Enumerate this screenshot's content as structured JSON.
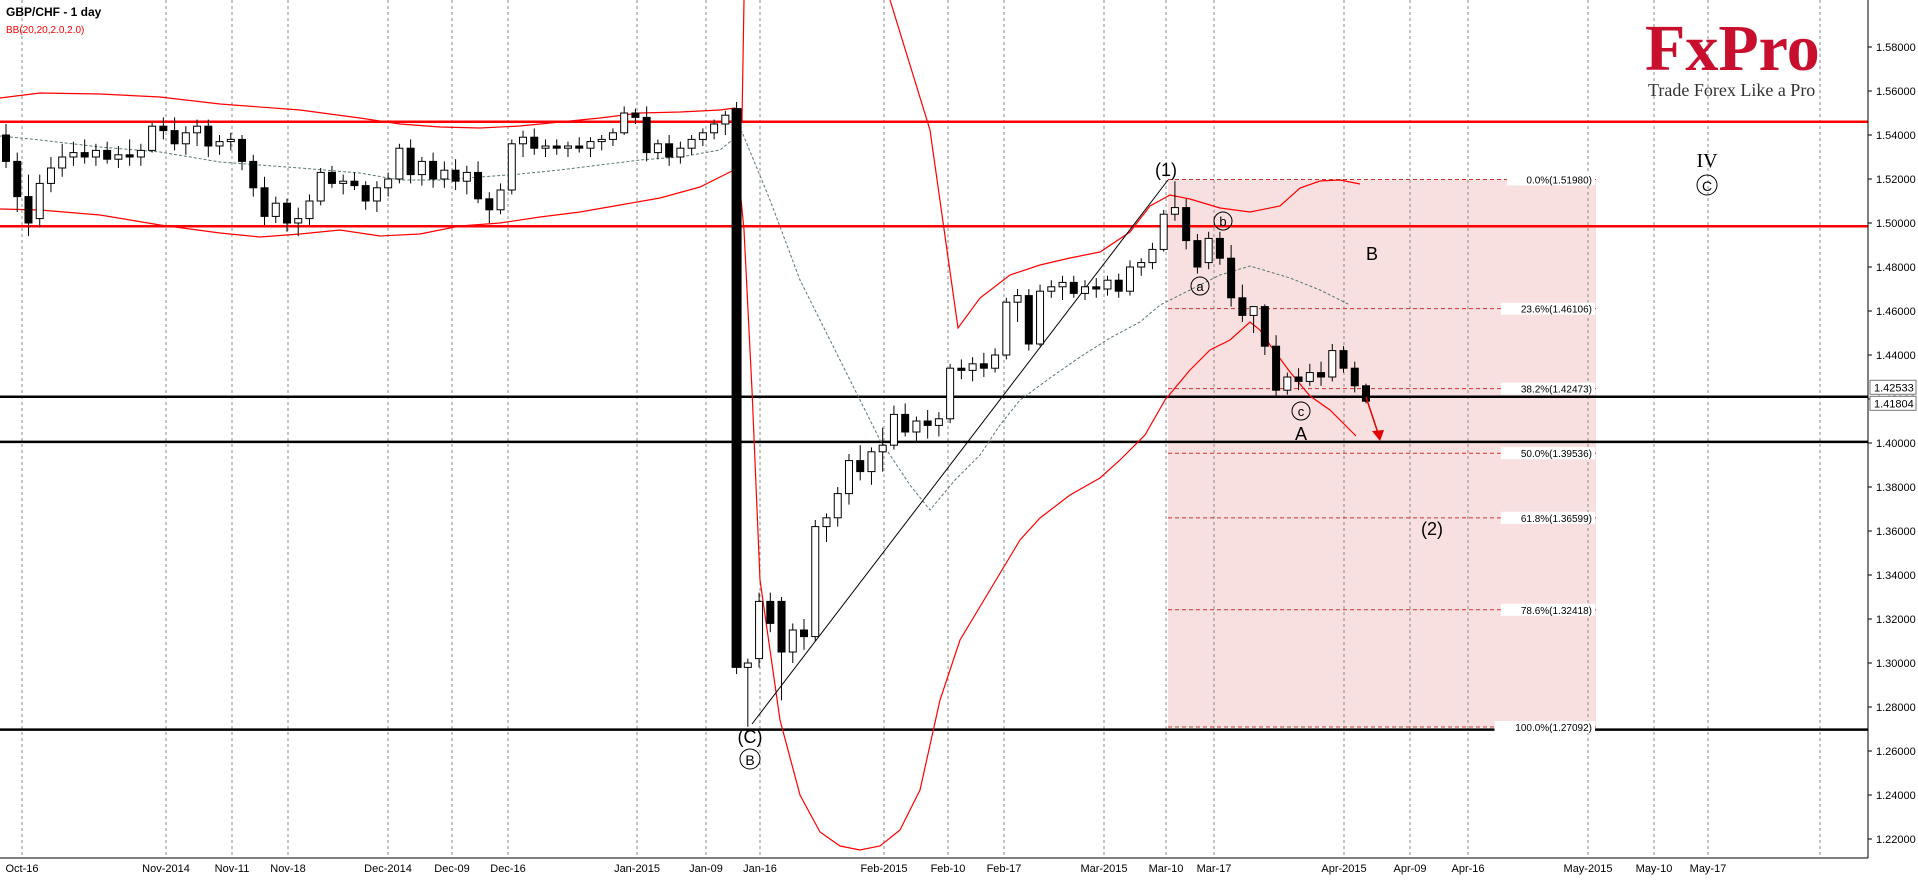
{
  "chart_data": {
    "type": "candlestick",
    "title": "GBP/CHF - 1 day",
    "indicator": "BB(20,20,2.0,2.0)",
    "x_tick_labels": [
      "Oct-16",
      "Nov-2014",
      "Nov-11",
      "Nov-18",
      "Dec-2014",
      "Dec-09",
      "Dec-16",
      "Jan-2015",
      "Jan-09",
      "Jan-16",
      "Feb-2015",
      "Feb-10",
      "Feb-17",
      "Mar-2015",
      "Mar-10",
      "Mar-17",
      "Apr-2015",
      "Apr-09",
      "Apr-16",
      "May-2015",
      "May-10",
      "May-17"
    ],
    "y_ticks": [
      "1.58000",
      "1.56000",
      "1.54000",
      "1.52000",
      "1.50000",
      "1.48000",
      "1.46000",
      "1.44000",
      "1.42000",
      "1.40000",
      "1.38000",
      "1.36000",
      "1.34000",
      "1.32000",
      "1.30000",
      "1.28000",
      "1.26000",
      "1.24000",
      "1.22000"
    ],
    "ylim": [
      1.2108,
      1.6014
    ],
    "price_tags": [
      "1.42533",
      "1.41804"
    ],
    "horizontal_levels": [
      {
        "price": 1.546,
        "color": "#ff0000"
      },
      {
        "price": 1.4985,
        "color": "#ff0000"
      },
      {
        "price": 1.421,
        "color": "#000000"
      },
      {
        "price": 1.4005,
        "color": "#000000"
      },
      {
        "price": 1.2697,
        "color": "#000000"
      }
    ],
    "fibonacci": [
      {
        "label": "0.0%(1.51980)",
        "price": 1.5198
      },
      {
        "label": "23.6%(1.46106)",
        "price": 1.46106
      },
      {
        "label": "38.2%(1.42473)",
        "price": 1.42473
      },
      {
        "label": "50.0%(1.39536)",
        "price": 1.39536
      },
      {
        "label": "61.8%(1.36599)",
        "price": 1.36599
      },
      {
        "label": "78.6%(1.32418)",
        "price": 1.32418
      },
      {
        "label": "100.0%(1.27092)",
        "price": 1.27092
      }
    ],
    "candles": [
      {
        "o": 1.54,
        "h": 1.545,
        "l": 1.525,
        "c": 1.528
      },
      {
        "o": 1.528,
        "h": 1.532,
        "l": 1.505,
        "c": 1.512
      },
      {
        "o": 1.512,
        "h": 1.522,
        "l": 1.494,
        "c": 1.5
      },
      {
        "o": 1.502,
        "h": 1.522,
        "l": 1.498,
        "c": 1.518
      },
      {
        "o": 1.518,
        "h": 1.53,
        "l": 1.514,
        "c": 1.525
      },
      {
        "o": 1.525,
        "h": 1.536,
        "l": 1.521,
        "c": 1.53
      },
      {
        "o": 1.53,
        "h": 1.537,
        "l": 1.526,
        "c": 1.532
      },
      {
        "o": 1.532,
        "h": 1.538,
        "l": 1.527,
        "c": 1.53
      },
      {
        "o": 1.53,
        "h": 1.536,
        "l": 1.526,
        "c": 1.533
      },
      {
        "o": 1.533,
        "h": 1.537,
        "l": 1.527,
        "c": 1.529
      },
      {
        "o": 1.529,
        "h": 1.535,
        "l": 1.525,
        "c": 1.531
      },
      {
        "o": 1.531,
        "h": 1.538,
        "l": 1.526,
        "c": 1.53
      },
      {
        "o": 1.53,
        "h": 1.536,
        "l": 1.526,
        "c": 1.533
      },
      {
        "o": 1.533,
        "h": 1.546,
        "l": 1.532,
        "c": 1.544
      },
      {
        "o": 1.544,
        "h": 1.548,
        "l": 1.538,
        "c": 1.542
      },
      {
        "o": 1.542,
        "h": 1.548,
        "l": 1.533,
        "c": 1.536
      },
      {
        "o": 1.536,
        "h": 1.544,
        "l": 1.531,
        "c": 1.541
      },
      {
        "o": 1.541,
        "h": 1.547,
        "l": 1.535,
        "c": 1.544
      },
      {
        "o": 1.544,
        "h": 1.547,
        "l": 1.53,
        "c": 1.535
      },
      {
        "o": 1.535,
        "h": 1.54,
        "l": 1.531,
        "c": 1.537
      },
      {
        "o": 1.537,
        "h": 1.541,
        "l": 1.533,
        "c": 1.538
      },
      {
        "o": 1.538,
        "h": 1.54,
        "l": 1.524,
        "c": 1.528
      },
      {
        "o": 1.528,
        "h": 1.531,
        "l": 1.512,
        "c": 1.516
      },
      {
        "o": 1.516,
        "h": 1.521,
        "l": 1.499,
        "c": 1.503
      },
      {
        "o": 1.503,
        "h": 1.512,
        "l": 1.5,
        "c": 1.509
      },
      {
        "o": 1.509,
        "h": 1.511,
        "l": 1.496,
        "c": 1.5
      },
      {
        "o": 1.5,
        "h": 1.507,
        "l": 1.494,
        "c": 1.502
      },
      {
        "o": 1.502,
        "h": 1.513,
        "l": 1.499,
        "c": 1.51
      },
      {
        "o": 1.51,
        "h": 1.525,
        "l": 1.508,
        "c": 1.523
      },
      {
        "o": 1.523,
        "h": 1.526,
        "l": 1.516,
        "c": 1.518
      },
      {
        "o": 1.518,
        "h": 1.522,
        "l": 1.513,
        "c": 1.519
      },
      {
        "o": 1.519,
        "h": 1.523,
        "l": 1.515,
        "c": 1.517
      },
      {
        "o": 1.517,
        "h": 1.519,
        "l": 1.506,
        "c": 1.51
      },
      {
        "o": 1.51,
        "h": 1.519,
        "l": 1.505,
        "c": 1.516
      },
      {
        "o": 1.516,
        "h": 1.523,
        "l": 1.512,
        "c": 1.52
      },
      {
        "o": 1.52,
        "h": 1.536,
        "l": 1.518,
        "c": 1.534
      },
      {
        "o": 1.534,
        "h": 1.538,
        "l": 1.518,
        "c": 1.522
      },
      {
        "o": 1.522,
        "h": 1.53,
        "l": 1.517,
        "c": 1.528
      },
      {
        "o": 1.528,
        "h": 1.532,
        "l": 1.516,
        "c": 1.52
      },
      {
        "o": 1.52,
        "h": 1.528,
        "l": 1.516,
        "c": 1.524
      },
      {
        "o": 1.524,
        "h": 1.529,
        "l": 1.515,
        "c": 1.519
      },
      {
        "o": 1.519,
        "h": 1.526,
        "l": 1.513,
        "c": 1.523
      },
      {
        "o": 1.523,
        "h": 1.528,
        "l": 1.509,
        "c": 1.511
      },
      {
        "o": 1.511,
        "h": 1.514,
        "l": 1.5,
        "c": 1.506
      },
      {
        "o": 1.506,
        "h": 1.518,
        "l": 1.504,
        "c": 1.515
      },
      {
        "o": 1.515,
        "h": 1.538,
        "l": 1.513,
        "c": 1.536
      },
      {
        "o": 1.536,
        "h": 1.542,
        "l": 1.53,
        "c": 1.539
      },
      {
        "o": 1.539,
        "h": 1.543,
        "l": 1.531,
        "c": 1.534
      },
      {
        "o": 1.534,
        "h": 1.538,
        "l": 1.53,
        "c": 1.535
      },
      {
        "o": 1.535,
        "h": 1.538,
        "l": 1.531,
        "c": 1.534
      },
      {
        "o": 1.534,
        "h": 1.537,
        "l": 1.53,
        "c": 1.535
      },
      {
        "o": 1.535,
        "h": 1.539,
        "l": 1.532,
        "c": 1.534
      },
      {
        "o": 1.534,
        "h": 1.539,
        "l": 1.53,
        "c": 1.537
      },
      {
        "o": 1.537,
        "h": 1.54,
        "l": 1.533,
        "c": 1.538
      },
      {
        "o": 1.538,
        "h": 1.543,
        "l": 1.535,
        "c": 1.541
      },
      {
        "o": 1.541,
        "h": 1.553,
        "l": 1.54,
        "c": 1.55
      },
      {
        "o": 1.55,
        "h": 1.552,
        "l": 1.545,
        "c": 1.548
      },
      {
        "o": 1.548,
        "h": 1.553,
        "l": 1.528,
        "c": 1.532
      },
      {
        "o": 1.532,
        "h": 1.538,
        "l": 1.529,
        "c": 1.536
      },
      {
        "o": 1.536,
        "h": 1.54,
        "l": 1.526,
        "c": 1.53
      },
      {
        "o": 1.53,
        "h": 1.537,
        "l": 1.527,
        "c": 1.534
      },
      {
        "o": 1.534,
        "h": 1.54,
        "l": 1.531,
        "c": 1.538
      },
      {
        "o": 1.538,
        "h": 1.543,
        "l": 1.535,
        "c": 1.541
      },
      {
        "o": 1.541,
        "h": 1.547,
        "l": 1.538,
        "c": 1.545
      },
      {
        "o": 1.545,
        "h": 1.551,
        "l": 1.54,
        "c": 1.549
      },
      {
        "o": 1.552,
        "h": 1.555,
        "l": 1.295,
        "c": 1.298
      },
      {
        "o": 1.298,
        "h": 1.302,
        "l": 1.271,
        "c": 1.3
      },
      {
        "o": 1.302,
        "h": 1.332,
        "l": 1.298,
        "c": 1.328
      },
      {
        "o": 1.328,
        "h": 1.332,
        "l": 1.314,
        "c": 1.318
      },
      {
        "o": 1.328,
        "h": 1.33,
        "l": 1.283,
        "c": 1.305
      },
      {
        "o": 1.305,
        "h": 1.318,
        "l": 1.3,
        "c": 1.315
      },
      {
        "o": 1.315,
        "h": 1.32,
        "l": 1.306,
        "c": 1.312
      },
      {
        "o": 1.312,
        "h": 1.365,
        "l": 1.31,
        "c": 1.362
      },
      {
        "o": 1.362,
        "h": 1.368,
        "l": 1.355,
        "c": 1.366
      },
      {
        "o": 1.366,
        "h": 1.38,
        "l": 1.362,
        "c": 1.377
      },
      {
        "o": 1.377,
        "h": 1.395,
        "l": 1.372,
        "c": 1.392
      },
      {
        "o": 1.392,
        "h": 1.399,
        "l": 1.383,
        "c": 1.387
      },
      {
        "o": 1.387,
        "h": 1.398,
        "l": 1.381,
        "c": 1.396
      },
      {
        "o": 1.396,
        "h": 1.407,
        "l": 1.387,
        "c": 1.399
      },
      {
        "o": 1.399,
        "h": 1.417,
        "l": 1.397,
        "c": 1.413
      },
      {
        "o": 1.413,
        "h": 1.418,
        "l": 1.403,
        "c": 1.405
      },
      {
        "o": 1.405,
        "h": 1.412,
        "l": 1.4,
        "c": 1.41
      },
      {
        "o": 1.41,
        "h": 1.415,
        "l": 1.402,
        "c": 1.408
      },
      {
        "o": 1.408,
        "h": 1.414,
        "l": 1.403,
        "c": 1.411
      },
      {
        "o": 1.411,
        "h": 1.436,
        "l": 1.409,
        "c": 1.434
      },
      {
        "o": 1.434,
        "h": 1.438,
        "l": 1.429,
        "c": 1.433
      },
      {
        "o": 1.433,
        "h": 1.439,
        "l": 1.428,
        "c": 1.436
      },
      {
        "o": 1.436,
        "h": 1.441,
        "l": 1.43,
        "c": 1.434
      },
      {
        "o": 1.434,
        "h": 1.443,
        "l": 1.432,
        "c": 1.44
      },
      {
        "o": 1.44,
        "h": 1.466,
        "l": 1.438,
        "c": 1.464
      },
      {
        "o": 1.464,
        "h": 1.47,
        "l": 1.455,
        "c": 1.467
      },
      {
        "o": 1.467,
        "h": 1.47,
        "l": 1.442,
        "c": 1.445
      },
      {
        "o": 1.445,
        "h": 1.472,
        "l": 1.444,
        "c": 1.469
      },
      {
        "o": 1.469,
        "h": 1.474,
        "l": 1.466,
        "c": 1.471
      },
      {
        "o": 1.471,
        "h": 1.476,
        "l": 1.465,
        "c": 1.473
      },
      {
        "o": 1.473,
        "h": 1.476,
        "l": 1.466,
        "c": 1.468
      },
      {
        "o": 1.468,
        "h": 1.474,
        "l": 1.465,
        "c": 1.471
      },
      {
        "o": 1.471,
        "h": 1.475,
        "l": 1.466,
        "c": 1.47
      },
      {
        "o": 1.47,
        "h": 1.476,
        "l": 1.467,
        "c": 1.474
      },
      {
        "o": 1.474,
        "h": 1.477,
        "l": 1.466,
        "c": 1.469
      },
      {
        "o": 1.469,
        "h": 1.483,
        "l": 1.467,
        "c": 1.48
      },
      {
        "o": 1.48,
        "h": 1.484,
        "l": 1.476,
        "c": 1.482
      },
      {
        "o": 1.482,
        "h": 1.491,
        "l": 1.479,
        "c": 1.488
      },
      {
        "o": 1.488,
        "h": 1.506,
        "l": 1.487,
        "c": 1.504
      },
      {
        "o": 1.504,
        "h": 1.519,
        "l": 1.501,
        "c": 1.507
      },
      {
        "o": 1.507,
        "h": 1.511,
        "l": 1.488,
        "c": 1.492
      },
      {
        "o": 1.492,
        "h": 1.495,
        "l": 1.477,
        "c": 1.48
      },
      {
        "o": 1.482,
        "h": 1.496,
        "l": 1.479,
        "c": 1.493
      },
      {
        "o": 1.493,
        "h": 1.496,
        "l": 1.481,
        "c": 1.484
      },
      {
        "o": 1.484,
        "h": 1.49,
        "l": 1.462,
        "c": 1.466
      },
      {
        "o": 1.466,
        "h": 1.472,
        "l": 1.455,
        "c": 1.458
      },
      {
        "o": 1.458,
        "h": 1.462,
        "l": 1.45,
        "c": 1.462
      },
      {
        "o": 1.462,
        "h": 1.463,
        "l": 1.44,
        "c": 1.444
      },
      {
        "o": 1.444,
        "h": 1.449,
        "l": 1.421,
        "c": 1.424
      },
      {
        "o": 1.424,
        "h": 1.432,
        "l": 1.422,
        "c": 1.43
      },
      {
        "o": 1.43,
        "h": 1.434,
        "l": 1.424,
        "c": 1.428
      },
      {
        "o": 1.428,
        "h": 1.436,
        "l": 1.426,
        "c": 1.432
      },
      {
        "o": 1.432,
        "h": 1.437,
        "l": 1.426,
        "c": 1.43
      },
      {
        "o": 1.43,
        "h": 1.445,
        "l": 1.428,
        "c": 1.442
      },
      {
        "o": 1.442,
        "h": 1.444,
        "l": 1.432,
        "c": 1.434
      },
      {
        "o": 1.434,
        "h": 1.437,
        "l": 1.423,
        "c": 1.426
      },
      {
        "o": 1.426,
        "h": 1.427,
        "l": 1.418,
        "c": 1.419
      }
    ]
  },
  "logo": {
    "brand": "FxPro",
    "tagline": "Trade Forex Like a Pro"
  },
  "annotations": {
    "wave_1": "(1)",
    "wave_c": "(C)",
    "wave_b_circle": "B",
    "wave_a_small": "a",
    "wave_b_small": "b",
    "wave_c_small": "c",
    "wave_A": "A",
    "wave_B": "B",
    "wave_2": "(2)",
    "wave_IV": "IV",
    "wave_C_circle": "C"
  },
  "colors": {
    "bull": "#ffffff",
    "bear": "#000000",
    "band": "#ff0000",
    "mid_band": "#5a7a6a",
    "fib_zone": "#f9e0e0",
    "fib_line": "#cc3333",
    "grid": "#888888",
    "logo": "#c8102e"
  }
}
